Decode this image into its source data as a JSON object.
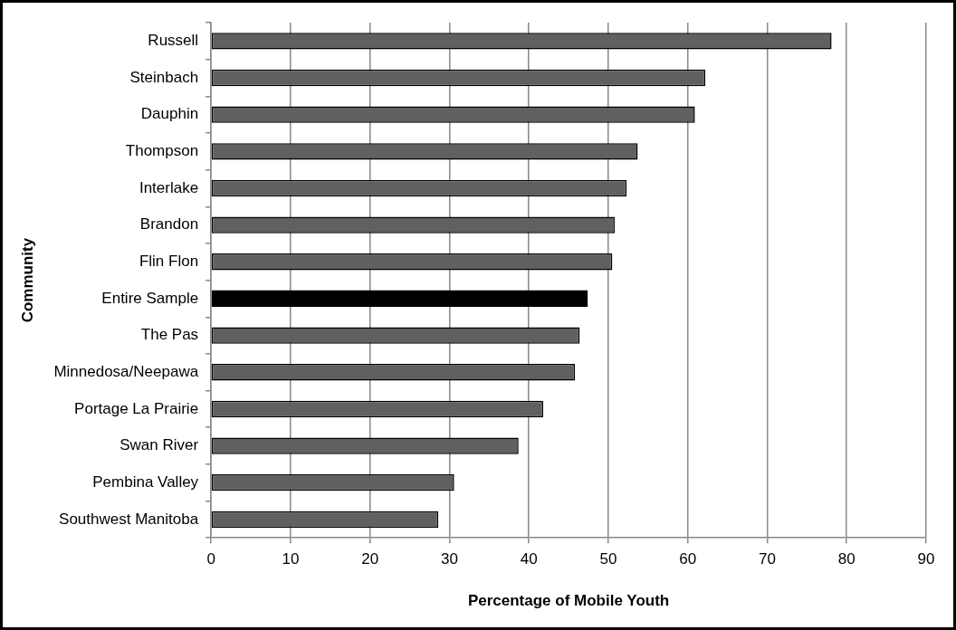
{
  "chart_data": {
    "type": "bar",
    "orientation": "horizontal",
    "xlabel": "Percentage of Mobile Youth",
    "ylabel": "Community",
    "categories": [
      "Russell",
      "Steinbach",
      "Dauphin",
      "Thompson",
      "Interlake",
      "Brandon",
      "Flin Flon",
      "Entire Sample",
      "The Pas",
      "Minnedosa/Neepawa",
      "Portage La Prairie",
      "Swan River",
      "Pembina Valley",
      "Southwest Manitoba"
    ],
    "values": [
      78.1,
      62.2,
      60.9,
      53.7,
      52.3,
      50.8,
      50.5,
      47.4,
      46.4,
      45.8,
      41.8,
      38.7,
      30.6,
      28.6
    ],
    "colors": [
      "#606060",
      "#606060",
      "#606060",
      "#606060",
      "#606060",
      "#606060",
      "#606060",
      "#000000",
      "#606060",
      "#606060",
      "#606060",
      "#606060",
      "#606060",
      "#606060"
    ],
    "xlim": [
      0,
      90
    ],
    "xticks": [
      0,
      10,
      20,
      30,
      40,
      50,
      60,
      70,
      80,
      90
    ],
    "grid": "x",
    "legend": false
  }
}
